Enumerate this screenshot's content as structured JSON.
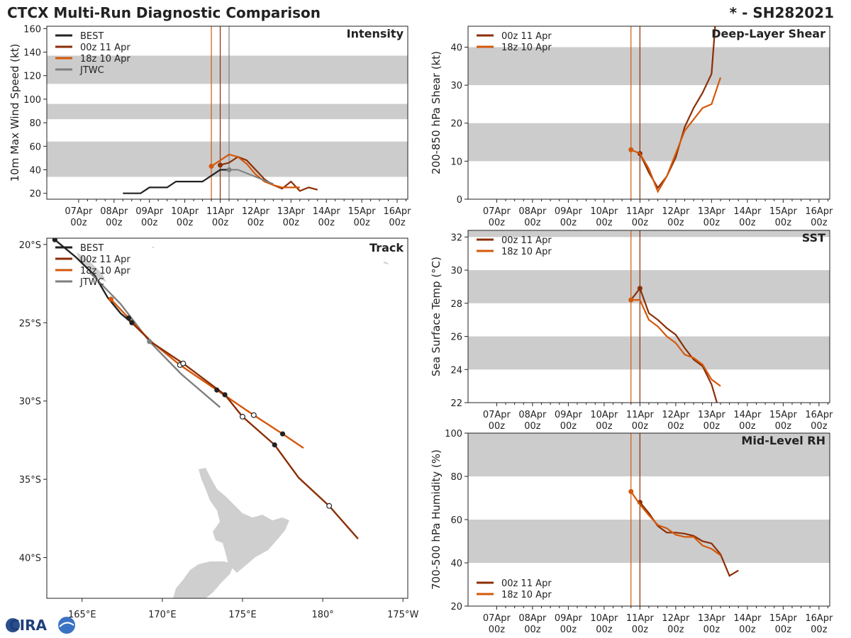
{
  "header": {
    "title": "CTCX Multi-Run Diagnostic Comparison",
    "storm_id": "* - SH282021"
  },
  "logo": {
    "text": "CIRA"
  },
  "colors": {
    "best": "#222222",
    "run00z": "#8b2e05",
    "run18z": "#d4580a",
    "jtwc": "#7f7f7f",
    "band": "#cccccc",
    "land": "#cfcfcf"
  },
  "time_ticks": [
    {
      "day": "07Apr",
      "hour": "00z"
    },
    {
      "day": "08Apr",
      "hour": "00z"
    },
    {
      "day": "09Apr",
      "hour": "00z"
    },
    {
      "day": "10Apr",
      "hour": "00z"
    },
    {
      "day": "11Apr",
      "hour": "00z"
    },
    {
      "day": "12Apr",
      "hour": "00z"
    },
    {
      "day": "13Apr",
      "hour": "00z"
    },
    {
      "day": "14Apr",
      "hour": "00z"
    },
    {
      "day": "15Apr",
      "hour": "00z"
    },
    {
      "day": "16Apr",
      "hour": "00z"
    }
  ],
  "chart_data": [
    {
      "id": "intensity",
      "type": "line",
      "title": "Intensity",
      "ylabel": "10m Max Wind Speed (kt)",
      "xlim_days": [
        -0.9,
        9.3
      ],
      "ylim": [
        15,
        162
      ],
      "yticks": [
        20,
        40,
        60,
        80,
        100,
        120,
        140,
        160
      ],
      "bands": [
        [
          34,
          64
        ],
        [
          83,
          96
        ],
        [
          113,
          137
        ]
      ],
      "vlines": [
        {
          "x": 3.75,
          "series": "run18z"
        },
        {
          "x": 4.0,
          "series": "run00z"
        },
        {
          "x": 4.25,
          "series": "jtwc"
        }
      ],
      "legend": [
        "BEST",
        "00z 11 Apr",
        "18z 10 Apr",
        "JTWC"
      ],
      "series": [
        {
          "key": "best",
          "name": "BEST",
          "x": [
            1.25,
            1.5,
            1.75,
            2.0,
            2.25,
            2.5,
            2.75,
            3.0,
            3.25,
            3.5,
            3.75,
            4.0,
            4.25
          ],
          "y": [
            20,
            20,
            20,
            25,
            25,
            25,
            30,
            30,
            30,
            30,
            35,
            40,
            40
          ],
          "markers": []
        },
        {
          "key": "run00z",
          "name": "00z 11 Apr",
          "x": [
            4.0,
            4.25,
            4.5,
            4.75,
            5.0,
            5.25,
            5.5,
            5.75,
            6.0,
            6.25,
            6.5,
            6.75,
            7.0,
            7.25,
            7.5
          ],
          "y": [
            44,
            46,
            51,
            48,
            40,
            32,
            27,
            24,
            30,
            22,
            25,
            23,
            null,
            null,
            null
          ],
          "markers": [
            0
          ]
        },
        {
          "key": "run18z",
          "name": "18z 10 Apr",
          "x": [
            3.75,
            4.0,
            4.25,
            4.5,
            4.75,
            5.0,
            5.25,
            5.5,
            5.75,
            6.0,
            6.25
          ],
          "y": [
            43,
            48,
            53,
            51,
            45,
            36,
            30,
            27,
            25,
            25,
            25
          ],
          "markers": [
            0
          ]
        },
        {
          "key": "jtwc",
          "name": "JTWC",
          "x": [
            4.25,
            4.5,
            4.75,
            5.0,
            5.25,
            5.5
          ],
          "y": [
            40,
            40,
            37,
            34,
            31,
            28
          ],
          "markers": [
            0
          ]
        }
      ]
    },
    {
      "id": "shear",
      "type": "line",
      "title": "Deep-Layer Shear",
      "ylabel": "200-850 hPa Shear (kt)",
      "xlim_days": [
        -0.8,
        9.3
      ],
      "ylim": [
        0,
        45.5
      ],
      "yticks": [
        0,
        10,
        20,
        30,
        40
      ],
      "bands": [
        [
          10,
          20
        ],
        [
          30,
          40
        ]
      ],
      "vlines": [
        {
          "x": 3.75,
          "series": "run18z"
        },
        {
          "x": 4.0,
          "series": "run00z"
        }
      ],
      "legend": [
        "00z 11 Apr",
        "18z 10 Apr"
      ],
      "series": [
        {
          "key": "run00z",
          "name": "00z 11 Apr",
          "x": [
            4.0,
            4.25,
            4.5,
            4.75,
            5.0,
            5.25,
            5.5,
            5.75,
            6.0,
            6.1
          ],
          "y": [
            12,
            7,
            3,
            6,
            11,
            19,
            24,
            28,
            33,
            45.5
          ],
          "markers": [
            0
          ]
        },
        {
          "key": "run18z",
          "name": "18z 10 Apr",
          "x": [
            3.75,
            4.0,
            4.25,
            4.5,
            4.75,
            5.0,
            5.25,
            5.5,
            5.75,
            6.0,
            6.25
          ],
          "y": [
            13,
            12,
            8,
            2,
            6,
            12,
            18,
            21,
            24,
            25,
            32
          ],
          "markers": [
            0
          ]
        }
      ]
    },
    {
      "id": "sst",
      "type": "line",
      "title": "SST",
      "ylabel": "Sea Surface Temp (°C)",
      "xlim_days": [
        -0.8,
        9.3
      ],
      "ylim": [
        22,
        32.4
      ],
      "yticks": [
        22,
        24,
        26,
        28,
        30,
        32
      ],
      "bands": [
        [
          24,
          26
        ],
        [
          28,
          30
        ],
        [
          32,
          32.4
        ]
      ],
      "vlines": [
        {
          "x": 3.75,
          "series": "run18z"
        },
        {
          "x": 4.0,
          "series": "run00z"
        }
      ],
      "legend": [
        "00z 11 Apr",
        "18z 10 Apr"
      ],
      "series": [
        {
          "key": "run00z",
          "name": "00z 11 Apr",
          "x": [
            3.75,
            4.0,
            4.25,
            4.5,
            4.75,
            5.0,
            5.25,
            5.5,
            5.75,
            6.0,
            6.15
          ],
          "y": [
            28.2,
            28.9,
            27.4,
            27.0,
            26.5,
            26.1,
            25.3,
            24.6,
            24.2,
            23.1,
            22.0
          ],
          "markers": [
            1
          ]
        },
        {
          "key": "run18z",
          "name": "18z 10 Apr",
          "x": [
            3.75,
            4.0,
            4.25,
            4.5,
            4.75,
            5.0,
            5.25,
            5.5,
            5.75,
            6.0,
            6.25
          ],
          "y": [
            28.2,
            28.2,
            27.0,
            26.6,
            26.0,
            25.6,
            24.9,
            24.7,
            24.3,
            23.4,
            23.0
          ],
          "markers": [
            0
          ]
        }
      ]
    },
    {
      "id": "rh",
      "type": "line",
      "title": "Mid-Level RH",
      "ylabel": "700-500 hPa Humidity (%)",
      "xlim_days": [
        -0.8,
        9.3
      ],
      "ylim": [
        20,
        100
      ],
      "yticks": [
        20,
        40,
        60,
        80,
        100
      ],
      "bands": [
        [
          40,
          60
        ],
        [
          80,
          100
        ]
      ],
      "vlines": [
        {
          "x": 3.75,
          "series": "run18z"
        },
        {
          "x": 4.0,
          "series": "run00z"
        }
      ],
      "legend": [
        "00z 11 Apr",
        "18z 10 Apr"
      ],
      "series": [
        {
          "key": "run00z",
          "name": "00z 11 Apr",
          "x": [
            4.0,
            4.25,
            4.5,
            4.75,
            5.0,
            5.25,
            5.5,
            5.75,
            6.0,
            6.25,
            6.5,
            6.75
          ],
          "y": [
            68,
            63,
            57,
            54,
            54,
            53.5,
            52.5,
            50,
            49,
            44,
            34,
            36.5
          ],
          "markers": [
            0
          ]
        },
        {
          "key": "run18z",
          "name": "18z 10 Apr",
          "x": [
            3.75,
            4.0,
            4.25,
            4.5,
            4.75,
            5.0,
            5.25,
            5.5,
            5.75,
            6.0,
            6.25
          ],
          "y": [
            73,
            67,
            62,
            57.5,
            56,
            53,
            52,
            52,
            48,
            46.5,
            43.5
          ],
          "markers": [
            0
          ]
        }
      ]
    },
    {
      "id": "track",
      "type": "line",
      "title": "Track",
      "xlim_lon": [
        162.8,
        185.3
      ],
      "ylim_lat": [
        -42.6,
        -19.6
      ],
      "xticks": [
        {
          "lon": 165,
          "label": "165°E"
        },
        {
          "lon": 170,
          "label": "170°E"
        },
        {
          "lon": 175,
          "label": "175°E"
        },
        {
          "lon": 180,
          "label": "180°"
        },
        {
          "lon": 185,
          "label": "175°W"
        }
      ],
      "yticks": [
        {
          "lat": -20,
          "label": "20°S"
        },
        {
          "lat": -25,
          "label": "25°S"
        },
        {
          "lat": -30,
          "label": "30°S"
        },
        {
          "lat": -35,
          "label": "35°S"
        },
        {
          "lat": -40,
          "label": "40°S"
        }
      ],
      "legend": [
        "BEST",
        "00z 11 Apr",
        "18z 10 Apr",
        "JTWC"
      ],
      "series": [
        {
          "key": "best",
          "name": "BEST",
          "lon": [
            163.3,
            164.6,
            165.8,
            166.6,
            167.4,
            168.1
          ],
          "lat": [
            -19.7,
            -20.8,
            -22.0,
            -23.4,
            -24.4,
            -25.0
          ],
          "filled": [
            0
          ],
          "open": []
        },
        {
          "key": "jtwc",
          "name": "JTWC",
          "lon": [
            165.5,
            167.4,
            169.2,
            171.2,
            173.6
          ],
          "lat": [
            -21.8,
            -23.8,
            -26.2,
            -28.3,
            -30.4
          ],
          "filled": [
            2
          ],
          "open": []
        },
        {
          "key": "run18z",
          "name": "18z 10 Apr",
          "lon": [
            166.8,
            167.9,
            169.3,
            171.1,
            173.4,
            175.7,
            177.5,
            178.8
          ],
          "lat": [
            -23.5,
            -24.7,
            -26.2,
            -27.7,
            -29.3,
            -30.9,
            -32.1,
            -33.0
          ],
          "filled": [
            0,
            1,
            4,
            6
          ],
          "open": [
            3,
            5
          ]
        },
        {
          "key": "run00z",
          "name": "00z 11 Apr",
          "lon": [
            168.1,
            169.4,
            171.3,
            173.9,
            175.0,
            177.0,
            178.5,
            180.4,
            182.2
          ],
          "lat": [
            -25.0,
            -26.3,
            -27.6,
            -29.6,
            -31.0,
            -32.8,
            -34.9,
            -36.7,
            -38.8
          ],
          "filled": [
            0,
            3,
            5
          ],
          "open": [
            2,
            4,
            7
          ]
        }
      ]
    }
  ]
}
